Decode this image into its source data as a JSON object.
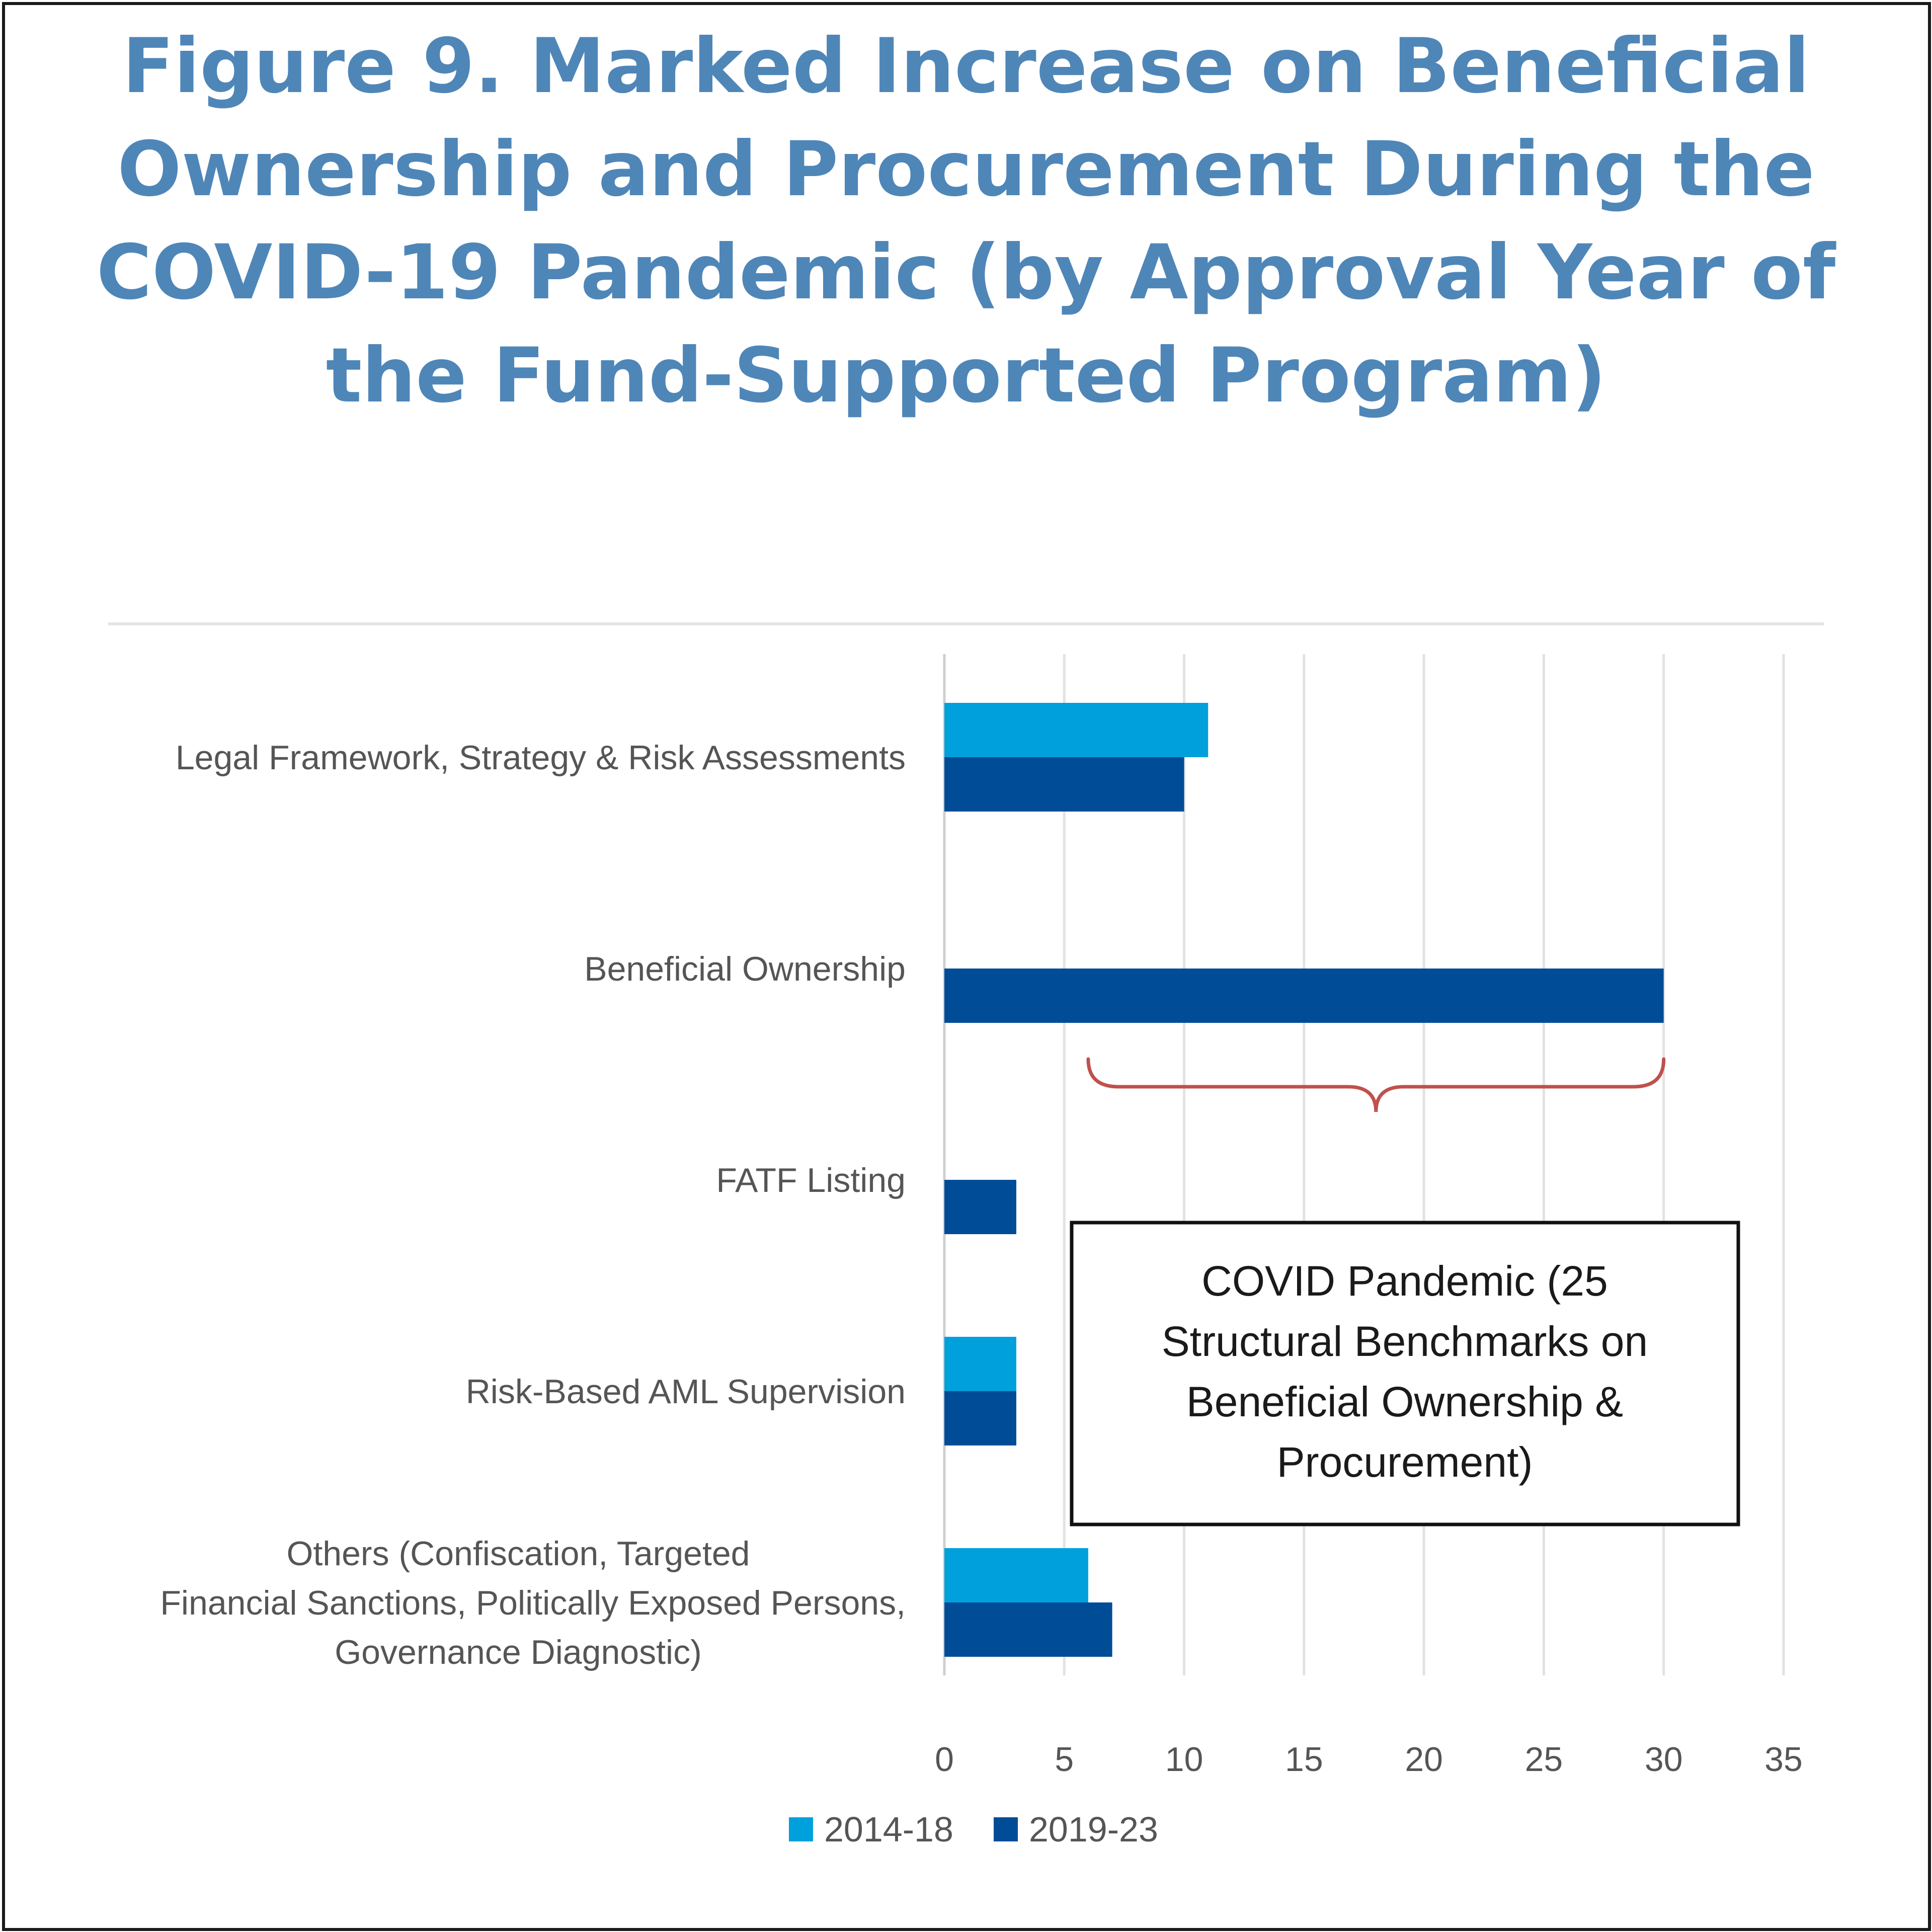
{
  "chart_data": {
    "type": "bar",
    "orientation": "horizontal",
    "title": "Figure 9. Marked Increase on Beneficial Ownership and Procurement During the COVID-19 Pandemic (by Approval Year of the Fund-Supported Program)",
    "categories": [
      "Legal Framework, Strategy & Risk Assessments",
      "Beneficial Ownership",
      "FATF Listing",
      "Risk-Based AML Supervision",
      "Others (Confiscation, Targeted Financial Sanctions, Politically Exposed Persons, Governance Diagnostic)"
    ],
    "series": [
      {
        "name": "2014-18",
        "color": "#00a0dc",
        "values": [
          11,
          0,
          0,
          3,
          6
        ]
      },
      {
        "name": "2019-23",
        "color": "#004c97",
        "values": [
          10,
          30,
          3,
          3,
          7
        ]
      }
    ],
    "xlim": [
      0,
      35
    ],
    "xticks": [
      0,
      5,
      10,
      15,
      20,
      25,
      30,
      35
    ],
    "xlabel": "",
    "ylabel": "",
    "grid": true,
    "legend": "bottom-center",
    "annotation": {
      "text": "COVID Pandemic (25 Structural Benchmarks on Beneficial Ownership & Procurement)",
      "brace_from": 6,
      "brace_to": 30,
      "brace_color": "#c0504d"
    }
  }
}
